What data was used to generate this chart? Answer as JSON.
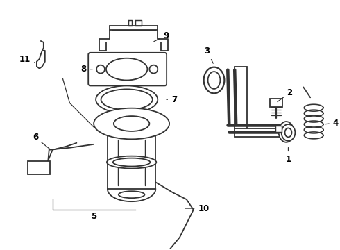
{
  "bg_color": "#ffffff",
  "line_color": "#333333",
  "text_color": "#000000",
  "fig_width": 4.9,
  "fig_height": 3.6,
  "dpi": 100
}
